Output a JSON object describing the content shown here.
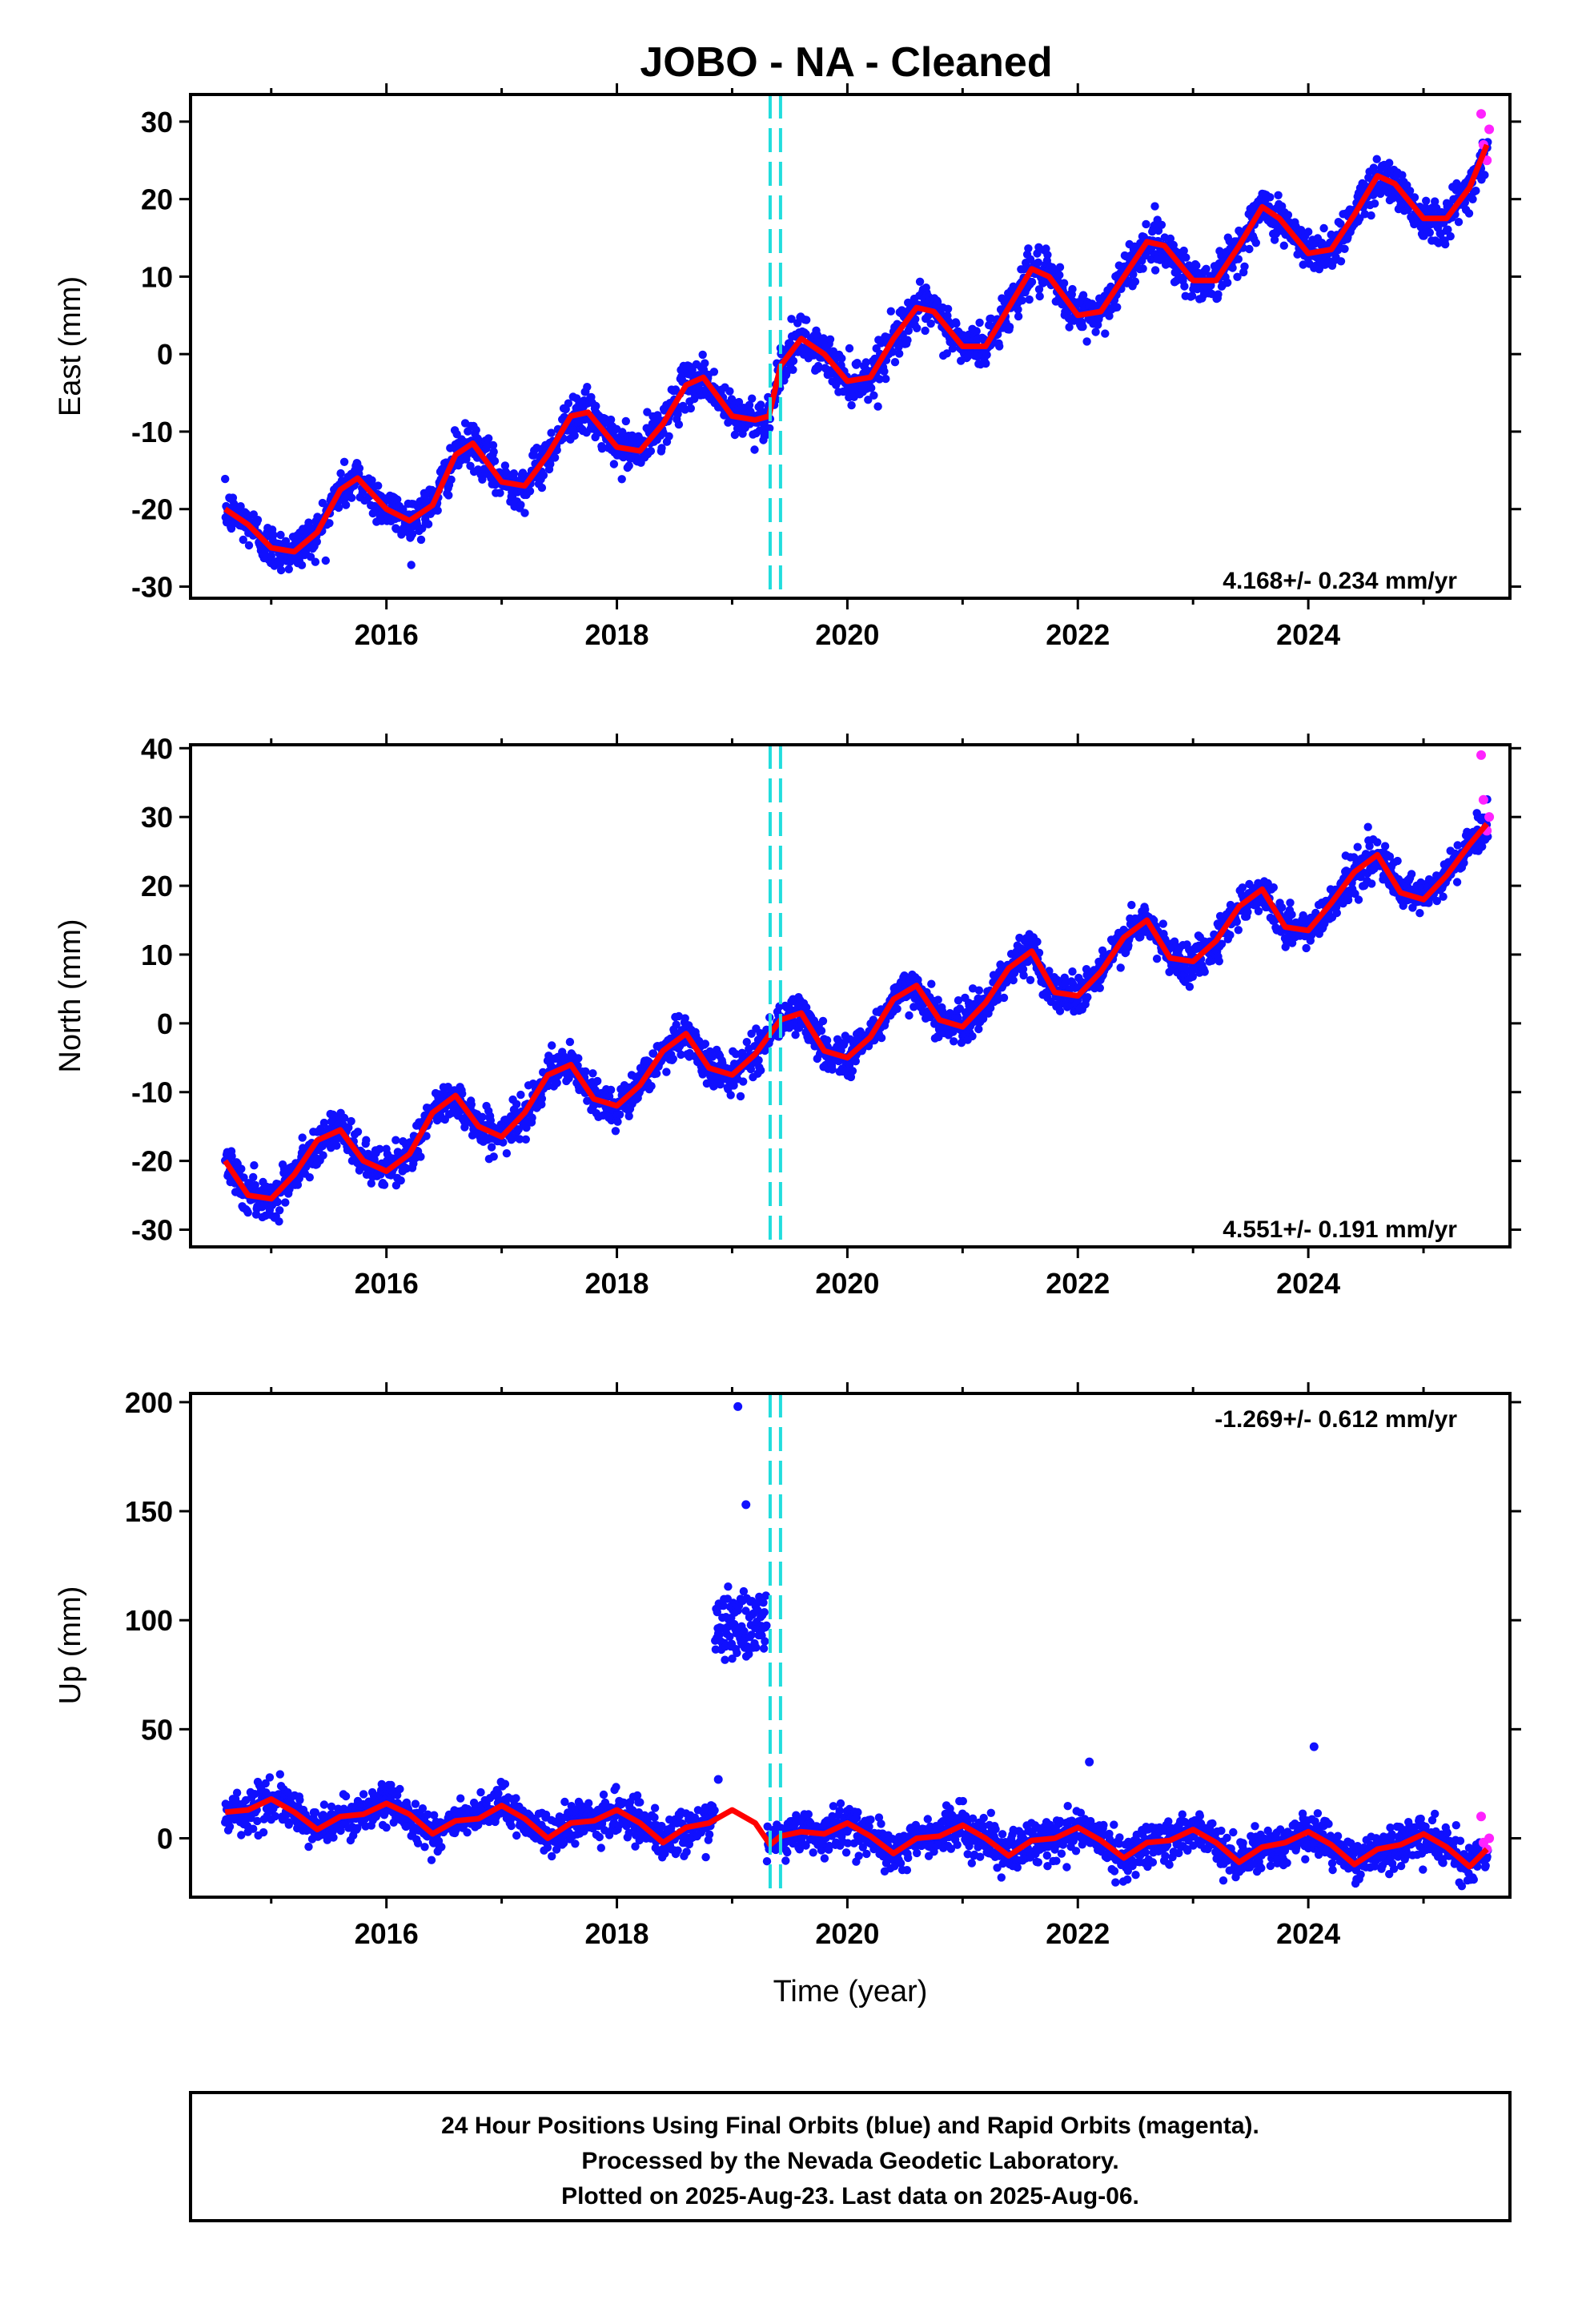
{
  "title": "JOBO  - NA - Cleaned",
  "colors": {
    "final_orbits": "#1010ff",
    "rapid_orbits": "#ff22ff",
    "model": "#ff0000",
    "offset_lines": "#22dddd"
  },
  "footer": {
    "line1": "24 Hour Positions Using Final Orbits (blue) and Rapid Orbits (magenta).",
    "line2": "Processed by the Nevada Geodetic Laboratory.",
    "line3": "Plotted on 2025-Aug-23. Last data on 2025-Aug-06."
  },
  "chart_data": [
    {
      "type": "scatter",
      "component": "east",
      "ylabel": "East (mm)",
      "xlabel": "",
      "xlim": [
        2014.3,
        2025.75
      ],
      "ylim": [
        -31.5,
        33.5
      ],
      "xticks": [
        2016,
        2018,
        2020,
        2022,
        2024
      ],
      "yticks": [
        -30,
        -20,
        -10,
        0,
        10,
        20,
        30
      ],
      "rate_label": "4.168+/- 0.234 mm/yr",
      "rate_position": "bottom-right",
      "offsets": [
        2019.33,
        2019.42
      ],
      "model_points": [
        [
          2014.6,
          -20.0
        ],
        [
          2014.8,
          -22.0
        ],
        [
          2015.0,
          -25.0
        ],
        [
          2015.2,
          -25.5
        ],
        [
          2015.4,
          -23.0
        ],
        [
          2015.6,
          -17.5
        ],
        [
          2015.75,
          -16.0
        ],
        [
          2016.0,
          -20.0
        ],
        [
          2016.2,
          -21.5
        ],
        [
          2016.4,
          -19.5
        ],
        [
          2016.6,
          -13.0
        ],
        [
          2016.75,
          -11.5
        ],
        [
          2017.0,
          -16.5
        ],
        [
          2017.2,
          -17.0
        ],
        [
          2017.4,
          -13.0
        ],
        [
          2017.6,
          -8.0
        ],
        [
          2017.75,
          -7.5
        ],
        [
          2018.0,
          -12.0
        ],
        [
          2018.2,
          -12.5
        ],
        [
          2018.4,
          -9.0
        ],
        [
          2018.6,
          -4.0
        ],
        [
          2018.75,
          -3.0
        ],
        [
          2019.0,
          -8.0
        ],
        [
          2019.2,
          -8.5
        ],
        [
          2019.32,
          -8.0
        ],
        [
          2019.42,
          -1.5
        ],
        [
          2019.6,
          2.0
        ],
        [
          2019.8,
          0.0
        ],
        [
          2020.0,
          -3.5
        ],
        [
          2020.2,
          -3.0
        ],
        [
          2020.4,
          2.0
        ],
        [
          2020.6,
          6.0
        ],
        [
          2020.75,
          5.5
        ],
        [
          2021.0,
          1.0
        ],
        [
          2021.2,
          1.0
        ],
        [
          2021.4,
          6.0
        ],
        [
          2021.6,
          11.0
        ],
        [
          2021.75,
          10.0
        ],
        [
          2022.0,
          5.0
        ],
        [
          2022.2,
          5.5
        ],
        [
          2022.4,
          10.0
        ],
        [
          2022.6,
          14.5
        ],
        [
          2022.75,
          14.0
        ],
        [
          2023.0,
          9.5
        ],
        [
          2023.2,
          9.5
        ],
        [
          2023.4,
          14.0
        ],
        [
          2023.6,
          19.0
        ],
        [
          2023.75,
          17.5
        ],
        [
          2024.0,
          13.0
        ],
        [
          2024.2,
          13.5
        ],
        [
          2024.4,
          18.0
        ],
        [
          2024.6,
          23.0
        ],
        [
          2024.75,
          22.0
        ],
        [
          2025.0,
          17.5
        ],
        [
          2025.2,
          17.5
        ],
        [
          2025.4,
          21.5
        ],
        [
          2025.55,
          27.0
        ]
      ],
      "rapid_points": [
        [
          2025.5,
          31.0
        ],
        [
          2025.52,
          27.0
        ],
        [
          2025.55,
          25.0
        ],
        [
          2025.57,
          29.0
        ]
      ],
      "series": [
        {
          "name": "Final Orbits (blue)"
        },
        {
          "name": "Rapid Orbits (magenta)"
        }
      ]
    },
    {
      "type": "scatter",
      "component": "north",
      "ylabel": "North (mm)",
      "xlabel": "",
      "xlim": [
        2014.3,
        2025.75
      ],
      "ylim": [
        -32.5,
        40.5
      ],
      "xticks": [
        2016,
        2018,
        2020,
        2022,
        2024
      ],
      "yticks": [
        -30,
        -20,
        -10,
        0,
        10,
        20,
        30,
        40
      ],
      "rate_label": "4.551+/- 0.191 mm/yr",
      "rate_position": "bottom-right",
      "offsets": [
        2019.33,
        2019.42
      ],
      "model_points": [
        [
          2014.6,
          -20.0
        ],
        [
          2014.8,
          -25.0
        ],
        [
          2015.0,
          -25.5
        ],
        [
          2015.2,
          -22.0
        ],
        [
          2015.4,
          -17.0
        ],
        [
          2015.6,
          -15.5
        ],
        [
          2015.8,
          -20.0
        ],
        [
          2016.0,
          -21.5
        ],
        [
          2016.2,
          -19.0
        ],
        [
          2016.4,
          -13.0
        ],
        [
          2016.6,
          -10.5
        ],
        [
          2016.8,
          -15.0
        ],
        [
          2017.0,
          -16.5
        ],
        [
          2017.2,
          -13.0
        ],
        [
          2017.4,
          -7.5
        ],
        [
          2017.6,
          -6.0
        ],
        [
          2017.8,
          -11.0
        ],
        [
          2018.0,
          -12.0
        ],
        [
          2018.2,
          -9.0
        ],
        [
          2018.4,
          -4.0
        ],
        [
          2018.6,
          -1.5
        ],
        [
          2018.8,
          -6.5
        ],
        [
          2019.0,
          -7.5
        ],
        [
          2019.2,
          -4.5
        ],
        [
          2019.33,
          -1.5
        ],
        [
          2019.42,
          0.5
        ],
        [
          2019.6,
          1.5
        ],
        [
          2019.8,
          -4.0
        ],
        [
          2020.0,
          -5.0
        ],
        [
          2020.2,
          -2.0
        ],
        [
          2020.4,
          3.5
        ],
        [
          2020.6,
          5.5
        ],
        [
          2020.8,
          0.5
        ],
        [
          2021.0,
          -0.5
        ],
        [
          2021.2,
          3.0
        ],
        [
          2021.4,
          8.0
        ],
        [
          2021.6,
          10.5
        ],
        [
          2021.8,
          4.5
        ],
        [
          2022.0,
          4.0
        ],
        [
          2022.2,
          7.5
        ],
        [
          2022.4,
          12.5
        ],
        [
          2022.6,
          15.0
        ],
        [
          2022.8,
          9.5
        ],
        [
          2023.0,
          9.0
        ],
        [
          2023.2,
          12.0
        ],
        [
          2023.4,
          17.0
        ],
        [
          2023.6,
          19.5
        ],
        [
          2023.8,
          14.0
        ],
        [
          2024.0,
          13.5
        ],
        [
          2024.2,
          17.5
        ],
        [
          2024.4,
          22.0
        ],
        [
          2024.6,
          24.5
        ],
        [
          2024.8,
          19.0
        ],
        [
          2025.0,
          18.0
        ],
        [
          2025.2,
          21.5
        ],
        [
          2025.4,
          26.0
        ],
        [
          2025.55,
          29.0
        ]
      ],
      "rapid_points": [
        [
          2025.5,
          39.0
        ],
        [
          2025.52,
          32.5
        ],
        [
          2025.55,
          28.0
        ],
        [
          2025.57,
          30.0
        ]
      ],
      "series": [
        {
          "name": "Final Orbits (blue)"
        },
        {
          "name": "Rapid Orbits (magenta)"
        }
      ]
    },
    {
      "type": "scatter",
      "component": "up",
      "ylabel": "Up (mm)",
      "xlabel": "Time (year)",
      "xlim": [
        2014.3,
        2025.75
      ],
      "ylim": [
        -27,
        204
      ],
      "xticks": [
        2016,
        2018,
        2020,
        2022,
        2024
      ],
      "yticks": [
        0,
        50,
        100,
        150,
        200
      ],
      "rate_label": "-1.269+/- 0.612 mm/yr",
      "rate_position": "top-right",
      "offsets": [
        2019.33,
        2019.42
      ],
      "model_points": [
        [
          2014.6,
          12.0
        ],
        [
          2014.8,
          13.0
        ],
        [
          2015.0,
          18.0
        ],
        [
          2015.2,
          12.0
        ],
        [
          2015.4,
          4.0
        ],
        [
          2015.6,
          10.0
        ],
        [
          2015.8,
          11.0
        ],
        [
          2016.0,
          16.0
        ],
        [
          2016.2,
          11.0
        ],
        [
          2016.4,
          2.0
        ],
        [
          2016.6,
          8.0
        ],
        [
          2016.8,
          9.0
        ],
        [
          2017.0,
          15.0
        ],
        [
          2017.2,
          9.0
        ],
        [
          2017.4,
          0.0
        ],
        [
          2017.6,
          7.0
        ],
        [
          2017.8,
          8.0
        ],
        [
          2018.0,
          13.0
        ],
        [
          2018.2,
          7.0
        ],
        [
          2018.4,
          -2.0
        ],
        [
          2018.6,
          5.0
        ],
        [
          2018.8,
          7.0
        ],
        [
          2019.0,
          13.0
        ],
        [
          2019.2,
          7.0
        ],
        [
          2019.33,
          -3.0
        ],
        [
          2019.42,
          1.0
        ],
        [
          2019.6,
          3.0
        ],
        [
          2019.8,
          2.0
        ],
        [
          2020.0,
          7.0
        ],
        [
          2020.2,
          1.0
        ],
        [
          2020.4,
          -7.0
        ],
        [
          2020.6,
          0.0
        ],
        [
          2020.8,
          1.0
        ],
        [
          2021.0,
          6.0
        ],
        [
          2021.2,
          0.0
        ],
        [
          2021.4,
          -8.0
        ],
        [
          2021.6,
          -1.0
        ],
        [
          2021.8,
          0.0
        ],
        [
          2022.0,
          5.0
        ],
        [
          2022.2,
          -1.0
        ],
        [
          2022.4,
          -9.0
        ],
        [
          2022.6,
          -2.0
        ],
        [
          2022.8,
          -1.0
        ],
        [
          2023.0,
          4.0
        ],
        [
          2023.2,
          -2.0
        ],
        [
          2023.4,
          -11.0
        ],
        [
          2023.6,
          -4.0
        ],
        [
          2023.8,
          -2.0
        ],
        [
          2024.0,
          3.0
        ],
        [
          2024.2,
          -3.0
        ],
        [
          2024.4,
          -12.0
        ],
        [
          2024.6,
          -5.0
        ],
        [
          2024.8,
          -3.0
        ],
        [
          2025.0,
          2.0
        ],
        [
          2025.2,
          -4.0
        ],
        [
          2025.4,
          -13.0
        ],
        [
          2025.55,
          -5.0
        ]
      ],
      "outlier_points": [
        [
          2019.05,
          198.0
        ],
        [
          2019.12,
          153.0
        ],
        [
          2018.88,
          27.0
        ],
        [
          2022.1,
          35.0
        ],
        [
          2024.05,
          42.0
        ]
      ],
      "jump_segment": {
        "x": [
          2018.85,
          2019.3
        ],
        "y": [
          85,
          112
        ]
      },
      "rapid_points": [
        [
          2025.5,
          10.0
        ],
        [
          2025.52,
          -2.0
        ],
        [
          2025.55,
          -5.0
        ],
        [
          2025.57,
          0.0
        ]
      ],
      "series": [
        {
          "name": "Final Orbits (blue)"
        },
        {
          "name": "Rapid Orbits (magenta)"
        }
      ]
    }
  ]
}
